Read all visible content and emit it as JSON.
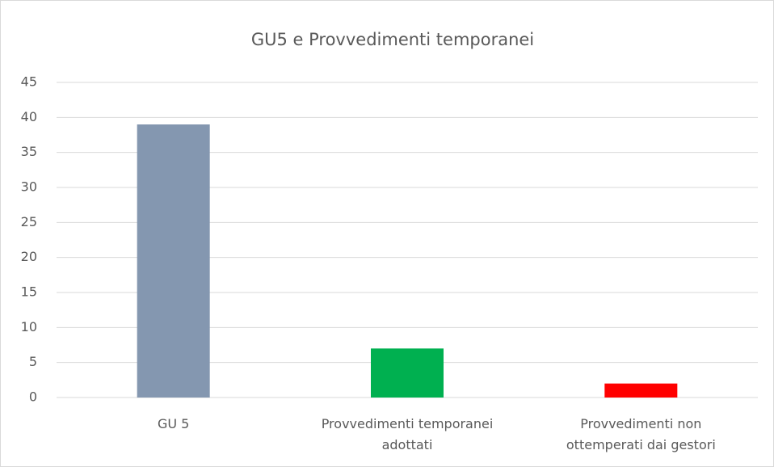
{
  "chart_data": {
    "type": "bar",
    "title": "GU5 e Provvedimenti temporanei",
    "categories": [
      "GU 5",
      "Provvedimenti temporanei adottati",
      "Provvedimenti non ottemperati dai gestori"
    ],
    "values": [
      39,
      7,
      2
    ],
    "colors": [
      "#8497b0",
      "#00b050",
      "#ff0000"
    ],
    "ylim": [
      0,
      45
    ],
    "yticks": [
      0,
      5,
      10,
      15,
      20,
      25,
      30,
      35,
      40,
      45
    ],
    "grid": true
  }
}
